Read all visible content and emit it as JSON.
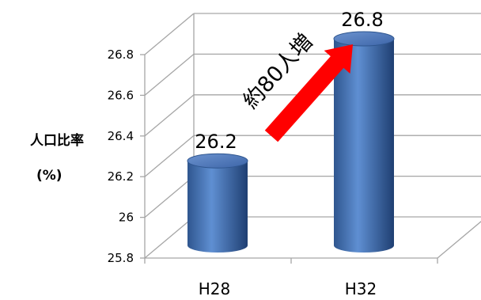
{
  "chart_data": {
    "type": "bar",
    "style": "3d-cylinder",
    "categories": [
      "H28",
      "H32"
    ],
    "values": [
      26.2,
      26.8
    ],
    "data_labels": [
      "26.2",
      "26.8"
    ],
    "ylabel_line1": "人口比率",
    "ylabel_line2": "(%)",
    "ylim": [
      25.8,
      26.8
    ],
    "yticks": [
      "25.8",
      "26",
      "26.2",
      "26.4",
      "26.6",
      "26.8"
    ],
    "grid": true,
    "annotation": {
      "text": "約80人増",
      "style": "red-arrow"
    },
    "colors": {
      "bar": "#4472c4",
      "arrow": "#ff0000",
      "grid": "#a6a6a6"
    }
  }
}
